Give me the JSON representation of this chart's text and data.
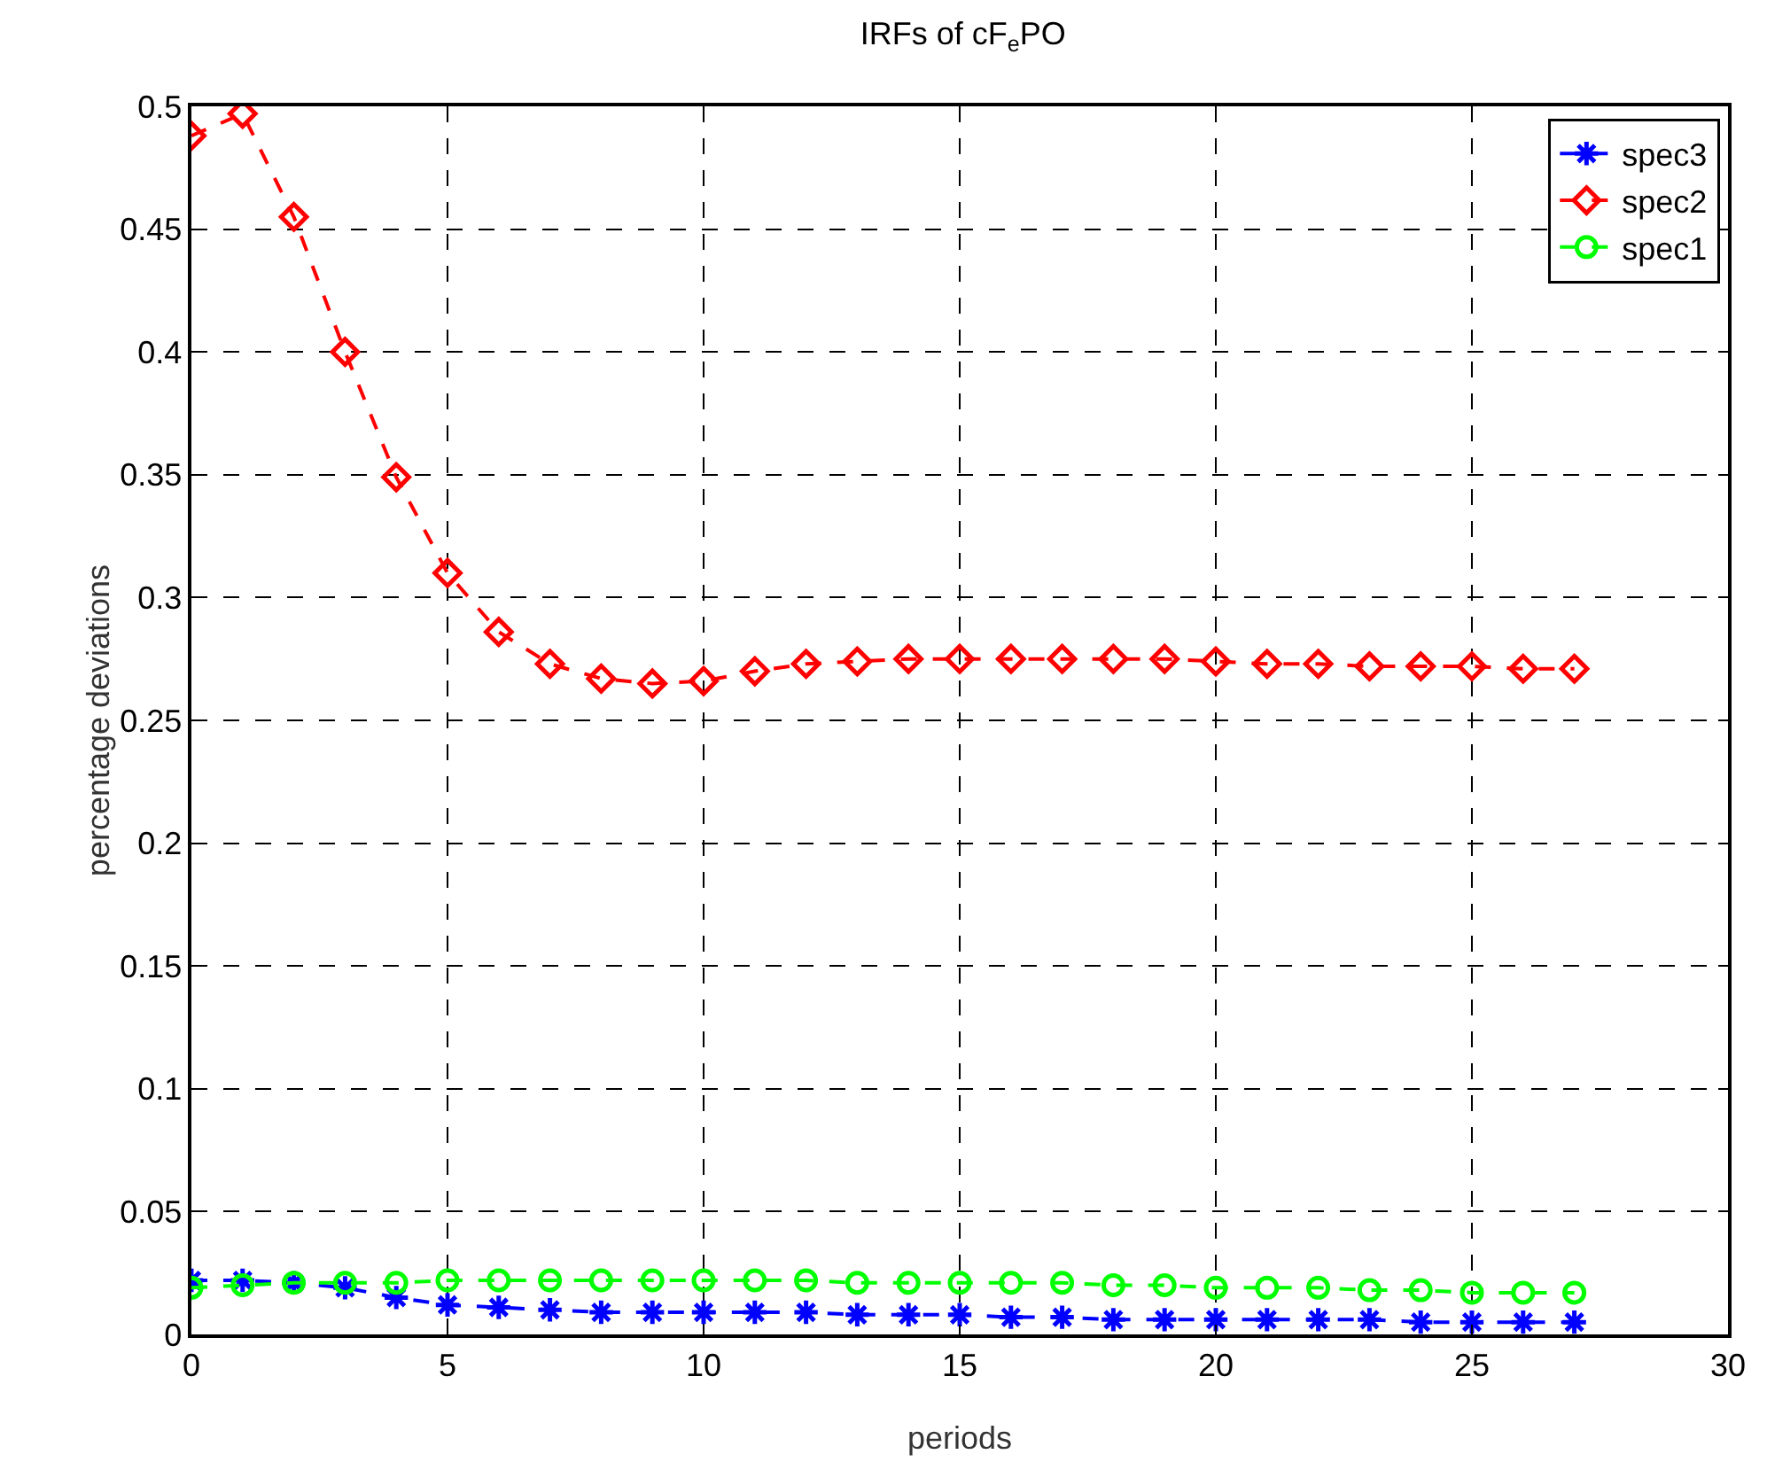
{
  "chart_data": {
    "type": "line",
    "title": "IRFs of cF$_{e}$PO",
    "xlabel": "periods",
    "ylabel": "percentage deviations",
    "x": [
      0,
      1,
      2,
      3,
      4,
      5,
      6,
      7,
      8,
      9,
      10,
      11,
      12,
      13,
      14,
      15,
      16,
      17,
      18,
      19,
      20,
      21,
      22,
      23,
      24,
      25,
      26,
      27
    ],
    "series": [
      {
        "name": "spec3",
        "color": "#0000ff",
        "marker": "cross",
        "values": [
          0.022,
          0.022,
          0.021,
          0.019,
          0.015,
          0.012,
          0.011,
          0.01,
          0.009,
          0.009,
          0.009,
          0.009,
          0.009,
          0.008,
          0.008,
          0.008,
          0.007,
          0.007,
          0.006,
          0.006,
          0.006,
          0.006,
          0.006,
          0.006,
          0.005,
          0.005,
          0.005,
          0.005
        ]
      },
      {
        "name": "spec2",
        "color": "#ff0000",
        "marker": "diamond",
        "values": [
          0.488,
          0.497,
          0.455,
          0.4,
          0.349,
          0.31,
          0.286,
          0.273,
          0.267,
          0.265,
          0.266,
          0.27,
          0.273,
          0.274,
          0.275,
          0.275,
          0.275,
          0.275,
          0.275,
          0.275,
          0.274,
          0.273,
          0.273,
          0.272,
          0.272,
          0.272,
          0.271,
          0.271
        ]
      },
      {
        "name": "spec1",
        "color": "#00ff00",
        "marker": "circle",
        "values": [
          0.019,
          0.02,
          0.021,
          0.021,
          0.021,
          0.022,
          0.022,
          0.022,
          0.022,
          0.022,
          0.022,
          0.022,
          0.022,
          0.021,
          0.021,
          0.021,
          0.021,
          0.021,
          0.02,
          0.02,
          0.019,
          0.019,
          0.019,
          0.018,
          0.018,
          0.017,
          0.017,
          0.017
        ]
      }
    ],
    "xlim": [
      0,
      30
    ],
    "xticks": [
      0,
      5,
      10,
      15,
      20,
      25,
      30
    ],
    "ylim": [
      0,
      0.5
    ],
    "yticks": [
      0,
      0.05,
      0.1,
      0.15,
      0.2,
      0.25,
      0.3,
      0.35,
      0.4,
      0.45,
      0.5
    ],
    "grid": true,
    "legend": "top right",
    "line_style": "dashed"
  }
}
